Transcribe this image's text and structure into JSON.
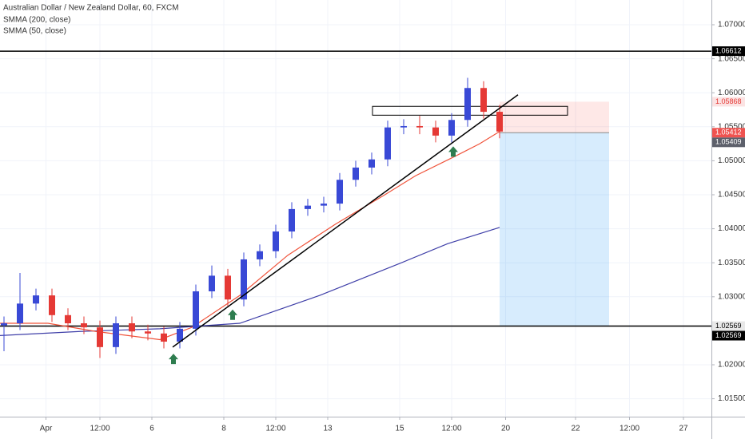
{
  "chart_data": {
    "type": "candlestick",
    "title": "Australian Dollar / New Zealand Dollar, 60, FXCM",
    "xlim": [
      0,
      356
    ],
    "ylim": [
      1.01237,
      1.07364
    ],
    "xticks": [
      {
        "value": 23,
        "label": "Apr"
      },
      {
        "value": 50,
        "label": "12:00"
      },
      {
        "value": 76,
        "label": "6"
      },
      {
        "value": 112,
        "label": "8"
      },
      {
        "value": 138,
        "label": "12:00"
      },
      {
        "value": 164,
        "label": "13"
      },
      {
        "value": 200,
        "label": "15"
      },
      {
        "value": 226,
        "label": "12:00"
      },
      {
        "value": 253,
        "label": "20"
      },
      {
        "value": 288,
        "label": "22"
      },
      {
        "value": 315,
        "label": "12:00"
      },
      {
        "value": 342,
        "label": "27"
      }
    ],
    "yticks": [
      {
        "value": 1.015,
        "label": "1.01500"
      },
      {
        "value": 1.02,
        "label": "1.02000"
      },
      {
        "value": 1.03,
        "label": "1.03000"
      },
      {
        "value": 1.035,
        "label": "1.03500"
      },
      {
        "value": 1.04,
        "label": "1.04000"
      },
      {
        "value": 1.045,
        "label": "1.04500"
      },
      {
        "value": 1.05,
        "label": "1.05000"
      },
      {
        "value": 1.055,
        "label": "1.05500"
      },
      {
        "value": 1.06,
        "label": "1.06000"
      },
      {
        "value": 1.065,
        "label": "1.06500"
      },
      {
        "value": 1.07,
        "label": "1.07000"
      }
    ],
    "up_color": "#3949d6",
    "down_color": "#e53935",
    "x": [
      2,
      10,
      18,
      26,
      34,
      42,
      50,
      58,
      66,
      74,
      82,
      90,
      98,
      106,
      114,
      122,
      130,
      138,
      146,
      154,
      162,
      170,
      178,
      186,
      194,
      202,
      210,
      218,
      226,
      234,
      242,
      250
    ],
    "open": [
      1.0258,
      1.0261,
      1.029,
      1.0302,
      1.0273,
      1.0261,
      1.0255,
      1.0226,
      1.0261,
      1.0249,
      1.0246,
      1.0234,
      1.0253,
      1.0308,
      1.0331,
      1.0296,
      1.0355,
      1.0367,
      1.0396,
      1.0429,
      1.0434,
      1.0437,
      1.0472,
      1.049,
      1.0502,
      1.0549,
      1.0551,
      1.0549,
      1.0537,
      1.056,
      1.0607,
      1.0572
    ],
    "high": [
      1.0271,
      1.0335,
      1.0312,
      1.0312,
      1.0283,
      1.0271,
      1.0265,
      1.0271,
      1.0271,
      1.0259,
      1.0256,
      1.0263,
      1.0318,
      1.0346,
      1.0341,
      1.0365,
      1.0377,
      1.0406,
      1.0439,
      1.0444,
      1.0447,
      1.0482,
      1.05,
      1.0512,
      1.0559,
      1.0561,
      1.0566,
      1.0559,
      1.057,
      1.0622,
      1.0617,
      1.0582
    ],
    "low": [
      1.022,
      1.0251,
      1.028,
      1.0263,
      1.0251,
      1.0245,
      1.021,
      1.0216,
      1.0239,
      1.0236,
      1.0224,
      1.0224,
      1.0243,
      1.0298,
      1.0286,
      1.0286,
      1.0345,
      1.0357,
      1.0386,
      1.0419,
      1.0424,
      1.0427,
      1.0462,
      1.048,
      1.0492,
      1.0539,
      1.0539,
      1.0527,
      1.0527,
      1.055,
      1.0562,
      1.0533
    ],
    "close": [
      1.0261,
      1.029,
      1.0302,
      1.0273,
      1.0261,
      1.0255,
      1.0226,
      1.0261,
      1.0249,
      1.0246,
      1.0234,
      1.0253,
      1.0308,
      1.0331,
      1.0296,
      1.0355,
      1.0367,
      1.0396,
      1.0429,
      1.0434,
      1.0437,
      1.0472,
      1.049,
      1.0502,
      1.0549,
      1.0551,
      1.0549,
      1.0537,
      1.056,
      1.0607,
      1.0572,
      1.0543
    ],
    "series": [
      {
        "name": "SMMA (200, close)",
        "color": "#3f3fa8",
        "x": [
          0,
          40,
          80,
          120,
          160,
          200,
          224,
          250
        ],
        "values": [
          1.0243,
          1.0249,
          1.0253,
          1.0261,
          1.0302,
          1.0349,
          1.0378,
          1.0402
        ]
      },
      {
        "name": "SMMA (50, close)",
        "color": "#f0533a",
        "x": [
          0,
          24,
          48,
          80,
          96,
          120,
          144,
          168,
          192,
          208,
          228,
          240,
          250
        ],
        "values": [
          1.0261,
          1.0261,
          1.0249,
          1.0237,
          1.0255,
          1.0302,
          1.0361,
          1.0407,
          1.0449,
          1.0478,
          1.0507,
          1.0525,
          1.0543
        ]
      }
    ],
    "hlines": [
      1.06612,
      1.02569
    ],
    "trendline": {
      "x": [
        86.4,
        259.2
      ],
      "y": [
        1.0226,
        1.0597
      ]
    },
    "zone": {
      "x": [
        186.4,
        284
      ],
      "y": [
        1.0567,
        1.058
      ]
    },
    "position": {
      "x": [
        250,
        304.8
      ],
      "entry": 1.05412,
      "stop": 1.05868,
      "target": 1.02569
    },
    "arrows": {
      "x": [
        86.8,
        116.4,
        226.8
      ],
      "y": [
        1.0208,
        1.0273,
        1.0513
      ],
      "color": "#2e7d4f"
    },
    "price_labels": [
      {
        "value": 1.06612,
        "color": "#000000",
        "text_color": "#ffffff"
      },
      {
        "value": 1.05868,
        "color": "#fbe3e3",
        "text_color": "#e53935"
      },
      {
        "value": 1.05412,
        "color": "#ef5350",
        "text_color": "#ffffff"
      },
      {
        "value": 1.05409,
        "color": "#5d606b",
        "text_color": "#ffffff"
      },
      {
        "value": 1.02569,
        "color": "#e8e8e8",
        "text_color": "#000000"
      },
      {
        "value": 1.02569,
        "color": "#000000",
        "text_color": "#ffffff"
      }
    ]
  }
}
